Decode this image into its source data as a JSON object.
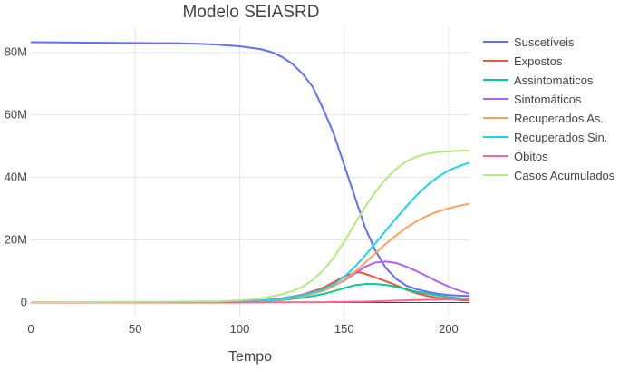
{
  "chart_data": {
    "type": "line",
    "title": "Modelo SEIASRD",
    "xlabel": "Tempo",
    "ylabel": "",
    "xlim": [
      0,
      210
    ],
    "ylim": [
      -4500000,
      88000000
    ],
    "x_ticks": [
      0,
      50,
      100,
      150,
      200
    ],
    "x_tick_labels": [
      "0",
      "50",
      "100",
      "150",
      "200"
    ],
    "y_ticks": [
      0,
      20000000,
      40000000,
      60000000,
      80000000
    ],
    "y_tick_labels": [
      "0",
      "20M",
      "40M",
      "60M",
      "80M"
    ],
    "grid": true,
    "legend_position": "right",
    "series": [
      {
        "name": "Suscetíveis",
        "color": "#636efa",
        "points": [
          [
            0,
            83.2
          ],
          [
            20,
            83.1
          ],
          [
            40,
            83.0
          ],
          [
            60,
            82.9
          ],
          [
            70,
            82.9
          ],
          [
            80,
            82.7
          ],
          [
            90,
            82.4
          ],
          [
            100,
            81.9
          ],
          [
            110,
            81.0
          ],
          [
            115,
            80.1
          ],
          [
            120,
            78.6
          ],
          [
            125,
            76.4
          ],
          [
            130,
            73.2
          ],
          [
            135,
            68.9
          ],
          [
            140,
            61.8
          ],
          [
            145,
            54.0
          ],
          [
            150,
            44.0
          ],
          [
            155,
            34.0
          ],
          [
            160,
            24.0
          ],
          [
            165,
            16.5
          ],
          [
            170,
            11.0
          ],
          [
            175,
            7.5
          ],
          [
            180,
            5.3
          ],
          [
            185,
            4.2
          ],
          [
            190,
            3.4
          ],
          [
            195,
            2.8
          ],
          [
            200,
            2.4
          ],
          [
            205,
            2.2
          ],
          [
            210,
            2.1
          ]
        ]
      },
      {
        "name": "Expostos",
        "color": "#ef553b",
        "points": [
          [
            0,
            0.1
          ],
          [
            50,
            0.1
          ],
          [
            90,
            0.2
          ],
          [
            100,
            0.3
          ],
          [
            110,
            0.6
          ],
          [
            120,
            1.3
          ],
          [
            130,
            2.5
          ],
          [
            140,
            4.7
          ],
          [
            145,
            6.5
          ],
          [
            150,
            8.3
          ],
          [
            155,
            9.5
          ],
          [
            158,
            9.6
          ],
          [
            162,
            8.7
          ],
          [
            165,
            8.0
          ],
          [
            170,
            6.8
          ],
          [
            175,
            5.5
          ],
          [
            180,
            4.0
          ],
          [
            185,
            2.9
          ],
          [
            190,
            2.1
          ],
          [
            195,
            1.5
          ],
          [
            200,
            1.1
          ],
          [
            205,
            0.8
          ],
          [
            210,
            0.6
          ]
        ]
      },
      {
        "name": "Assintomáticos",
        "color": "#00cc96",
        "points": [
          [
            0,
            0.0
          ],
          [
            90,
            0.1
          ],
          [
            100,
            0.2
          ],
          [
            110,
            0.4
          ],
          [
            120,
            0.8
          ],
          [
            130,
            1.5
          ],
          [
            140,
            2.7
          ],
          [
            145,
            3.6
          ],
          [
            150,
            4.6
          ],
          [
            155,
            5.5
          ],
          [
            160,
            5.9
          ],
          [
            165,
            5.9
          ],
          [
            170,
            5.6
          ],
          [
            175,
            5.0
          ],
          [
            180,
            4.2
          ],
          [
            185,
            3.4
          ],
          [
            190,
            2.8
          ],
          [
            195,
            2.2
          ],
          [
            200,
            1.7
          ],
          [
            205,
            1.4
          ],
          [
            210,
            1.1
          ]
        ]
      },
      {
        "name": "Sintomáticos",
        "color": "#ab63fa",
        "points": [
          [
            0,
            0.0
          ],
          [
            90,
            0.1
          ],
          [
            100,
            0.3
          ],
          [
            110,
            0.6
          ],
          [
            120,
            1.3
          ],
          [
            130,
            2.3
          ],
          [
            140,
            4.0
          ],
          [
            145,
            5.3
          ],
          [
            150,
            7.0
          ],
          [
            155,
            9.2
          ],
          [
            160,
            11.4
          ],
          [
            165,
            12.8
          ],
          [
            170,
            13.1
          ],
          [
            175,
            12.6
          ],
          [
            180,
            11.4
          ],
          [
            185,
            9.9
          ],
          [
            190,
            8.3
          ],
          [
            195,
            6.6
          ],
          [
            200,
            5.1
          ],
          [
            205,
            3.8
          ],
          [
            210,
            2.8
          ]
        ]
      },
      {
        "name": "Recuperados As.",
        "color": "#ffa15a",
        "points": [
          [
            0,
            0.0
          ],
          [
            90,
            0.1
          ],
          [
            100,
            0.2
          ],
          [
            110,
            0.5
          ],
          [
            120,
            1.0
          ],
          [
            130,
            2.0
          ],
          [
            140,
            3.7
          ],
          [
            145,
            5.2
          ],
          [
            150,
            7.2
          ],
          [
            155,
            9.7
          ],
          [
            160,
            12.7
          ],
          [
            165,
            15.8
          ],
          [
            170,
            18.8
          ],
          [
            175,
            21.5
          ],
          [
            180,
            24.0
          ],
          [
            185,
            26.1
          ],
          [
            190,
            27.8
          ],
          [
            195,
            29.1
          ],
          [
            200,
            30.1
          ],
          [
            205,
            30.9
          ],
          [
            210,
            31.6
          ]
        ]
      },
      {
        "name": "Recuperados Sin.",
        "color": "#19d3f3",
        "points": [
          [
            0,
            0.0
          ],
          [
            90,
            0.1
          ],
          [
            100,
            0.3
          ],
          [
            110,
            0.6
          ],
          [
            120,
            1.2
          ],
          [
            130,
            2.3
          ],
          [
            140,
            4.2
          ],
          [
            145,
            5.8
          ],
          [
            150,
            8.2
          ],
          [
            155,
            11.3
          ],
          [
            160,
            15.0
          ],
          [
            165,
            19.0
          ],
          [
            170,
            23.0
          ],
          [
            175,
            27.0
          ],
          [
            180,
            30.9
          ],
          [
            185,
            34.5
          ],
          [
            190,
            37.6
          ],
          [
            195,
            40.2
          ],
          [
            200,
            42.2
          ],
          [
            205,
            43.6
          ],
          [
            210,
            44.7
          ]
        ]
      },
      {
        "name": "Óbitos",
        "color": "#ff6692",
        "points": [
          [
            0,
            0.0
          ],
          [
            100,
            0.0
          ],
          [
            120,
            0.05
          ],
          [
            140,
            0.1
          ],
          [
            150,
            0.2
          ],
          [
            160,
            0.3
          ],
          [
            170,
            0.5
          ],
          [
            180,
            0.7
          ],
          [
            190,
            0.9
          ],
          [
            200,
            1.0
          ],
          [
            210,
            1.1
          ]
        ]
      },
      {
        "name": "Casos Acumulados",
        "color": "#b6e880",
        "points": [
          [
            0,
            0.1
          ],
          [
            50,
            0.2
          ],
          [
            90,
            0.4
          ],
          [
            100,
            0.7
          ],
          [
            110,
            1.3
          ],
          [
            115,
            1.9
          ],
          [
            120,
            2.6
          ],
          [
            125,
            3.6
          ],
          [
            130,
            5.0
          ],
          [
            135,
            7.2
          ],
          [
            140,
            10.3
          ],
          [
            145,
            14.4
          ],
          [
            150,
            19.4
          ],
          [
            155,
            25.0
          ],
          [
            160,
            30.5
          ],
          [
            165,
            35.4
          ],
          [
            170,
            39.5
          ],
          [
            175,
            42.8
          ],
          [
            180,
            45.2
          ],
          [
            185,
            46.7
          ],
          [
            190,
            47.6
          ],
          [
            195,
            48.1
          ],
          [
            200,
            48.3
          ],
          [
            205,
            48.5
          ],
          [
            210,
            48.6
          ]
        ]
      }
    ]
  }
}
